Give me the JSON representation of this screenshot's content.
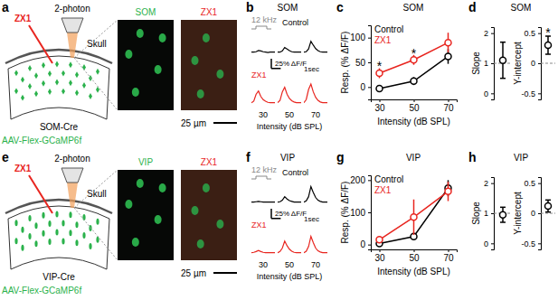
{
  "schematics": [
    {
      "panel": "a",
      "drug": "ZX1",
      "microscope": "2-photon",
      "skull": "Skull",
      "mouse": "SOM-Cre",
      "virus": "AAV-Flex-GCaMP6f",
      "image_titles": [
        "SOM",
        "ZX1"
      ],
      "scalebar": "25 µm",
      "marker": "diamond",
      "colors": [
        "#2bb24c",
        "#e8251f"
      ]
    },
    {
      "panel": "e",
      "drug": "ZX1",
      "microscope": "2-photon",
      "skull": "Skull",
      "mouse": "VIP-Cre",
      "virus": "AAV-Flex-GCaMP6f",
      "image_titles": [
        "VIP",
        "ZX1"
      ],
      "scalebar": "25 µm",
      "marker": "ellipse",
      "colors": [
        "#2bb24c",
        "#e8251f"
      ]
    }
  ],
  "chart_data": [
    {
      "panel": "b",
      "type": "line",
      "title": "SOM",
      "stimulus": "12 kHz",
      "tick_labels": false,
      "x": [
        0,
        0.25,
        0.5,
        0.75,
        1,
        1.25,
        1.5,
        1.75,
        2,
        2.25,
        2.5
      ],
      "xlim": [
        0,
        2.5
      ],
      "ylim": [
        -10,
        55
      ],
      "groups": [
        30,
        50,
        70
      ],
      "xlabel": "Intensity (dB SPL)",
      "scalebar": {
        "y": 25,
        "y_label": "25% ΔF/F",
        "x": 1,
        "x_label": "1sec"
      },
      "series": [
        {
          "name": "Control",
          "color": "#000000",
          "traces": [
            [
              0,
              0,
              1,
              4,
              3,
              1,
              0,
              -1,
              0,
              0,
              0
            ],
            [
              0,
              0,
              3,
              12,
              8,
              4,
              1,
              0,
              0,
              0,
              0
            ],
            [
              0,
              1,
              8,
              28,
              18,
              9,
              4,
              1,
              0,
              0,
              0
            ]
          ]
        },
        {
          "name": "ZX1",
          "color": "#e8251f",
          "traces": [
            [
              0,
              4,
              22,
              30,
              16,
              8,
              4,
              1,
              0,
              0,
              0
            ],
            [
              0,
              6,
              28,
              40,
              22,
              11,
              5,
              2,
              0,
              0,
              0
            ],
            [
              0,
              8,
              34,
              48,
              28,
              14,
              6,
              2,
              0,
              0,
              0
            ]
          ]
        }
      ]
    },
    {
      "panel": "c",
      "type": "line",
      "title": "SOM",
      "marker": "circle",
      "legend": "top-left",
      "x": [
        30,
        50,
        70
      ],
      "xlim": [
        25,
        75
      ],
      "xticks": [
        30,
        50,
        70
      ],
      "ylim": [
        -25,
        125
      ],
      "yticks": [
        0,
        50,
        100
      ],
      "xlabel": "Intensity (dB SPL)",
      "ylabel": "Resp. (% ΔF/F)",
      "series": [
        {
          "name": "Control",
          "color": "#000000",
          "values": [
            -3,
            12,
            62
          ],
          "errors": [
            5,
            8,
            15
          ]
        },
        {
          "name": "ZX1",
          "color": "#e8251f",
          "values": [
            28,
            55,
            90
          ],
          "errors": [
            10,
            10,
            20
          ]
        }
      ],
      "annotations": [
        {
          "text": "*",
          "x": 30,
          "y": 44
        },
        {
          "text": "*",
          "x": 50,
          "y": 70
        }
      ]
    },
    {
      "panel": "d",
      "type": "scatter",
      "title": "SOM",
      "marker": "circle",
      "ylabel": "Slope",
      "ylim": [
        -0.2,
        2.2
      ],
      "yticks": [
        0,
        1,
        2
      ],
      "reference": 1,
      "values": [
        1.1
      ],
      "errors": [
        0.6
      ],
      "color": "#000000"
    },
    {
      "type": "scatter",
      "marker": "circle",
      "ylabel": "Y-intercept",
      "ylim": [
        -0.6,
        0.6
      ],
      "yticks": [
        -0.5,
        0,
        0.5
      ],
      "reference": 0,
      "values": [
        0.3
      ],
      "errors": [
        0.15
      ],
      "color": "#000000",
      "annotations": [
        {
          "text": "*",
          "y": 0.5
        }
      ]
    },
    {
      "panel": "f",
      "type": "line",
      "title": "VIP",
      "stimulus": "12 kHz",
      "tick_labels": false,
      "x": [
        0,
        0.25,
        0.5,
        0.75,
        1,
        1.25,
        1.5,
        1.75,
        2,
        2.25,
        2.5
      ],
      "xlim": [
        0,
        2.5
      ],
      "ylim": [
        -10,
        55
      ],
      "groups": [
        30,
        50,
        70
      ],
      "xlabel": "Intensity (dB SPL)",
      "scalebar": {
        "y": 25,
        "y_label": "25% ΔF/F",
        "x": 1,
        "x_label": "1sec"
      },
      "series": [
        {
          "name": "Control",
          "color": "#000000",
          "traces": [
            [
              0,
              0,
              1,
              2,
              1,
              0,
              0,
              0,
              0,
              0,
              0
            ],
            [
              0,
              1,
              5,
              14,
              8,
              4,
              2,
              0,
              0,
              0,
              0
            ],
            [
              0,
              3,
              14,
              40,
              25,
              12,
              5,
              2,
              0,
              0,
              0
            ]
          ]
        },
        {
          "name": "ZX1",
          "color": "#e8251f",
          "traces": [
            [
              0,
              1,
              3,
              6,
              3,
              1,
              0,
              0,
              0,
              0,
              0
            ],
            [
              0,
              3,
              12,
              30,
              18,
              9,
              4,
              1,
              0,
              0,
              0
            ],
            [
              0,
              4,
              16,
              42,
              26,
              12,
              5,
              2,
              0,
              0,
              0
            ]
          ]
        }
      ]
    },
    {
      "panel": "g",
      "type": "line",
      "title": "VIP",
      "marker": "circle",
      "legend": "top-left",
      "x": [
        30,
        50,
        70
      ],
      "xlim": [
        25,
        75
      ],
      "xticks": [
        30,
        50,
        70
      ],
      "ylim": [
        -15,
        215
      ],
      "yticks": [
        0,
        100,
        200
      ],
      "xlabel": "Intensity (dB SPL)",
      "ylabel": "Resp. (% ΔF/F)",
      "series": [
        {
          "name": "Control",
          "color": "#000000",
          "values": [
            3,
            25,
            175
          ],
          "errors": [
            4,
            10,
            25
          ]
        },
        {
          "name": "ZX1",
          "color": "#e8251f",
          "values": [
            15,
            85,
            165
          ],
          "errors": [
            8,
            55,
            30
          ]
        }
      ]
    },
    {
      "panel": "h",
      "type": "scatter",
      "title": "VIP",
      "marker": "circle",
      "ylabel": "Slope",
      "ylim": [
        -0.2,
        2.2
      ],
      "yticks": [
        0,
        1,
        2
      ],
      "reference": 1,
      "values": [
        0.95
      ],
      "errors": [
        0.25
      ],
      "color": "#000000"
    },
    {
      "type": "scatter",
      "marker": "circle",
      "ylabel": "Y-intercept",
      "ylim": [
        -0.6,
        0.6
      ],
      "yticks": [
        -0.5,
        0,
        0.5
      ],
      "reference": 0,
      "values": [
        0.12
      ],
      "errors": [
        0.1
      ],
      "color": "#000000"
    }
  ]
}
